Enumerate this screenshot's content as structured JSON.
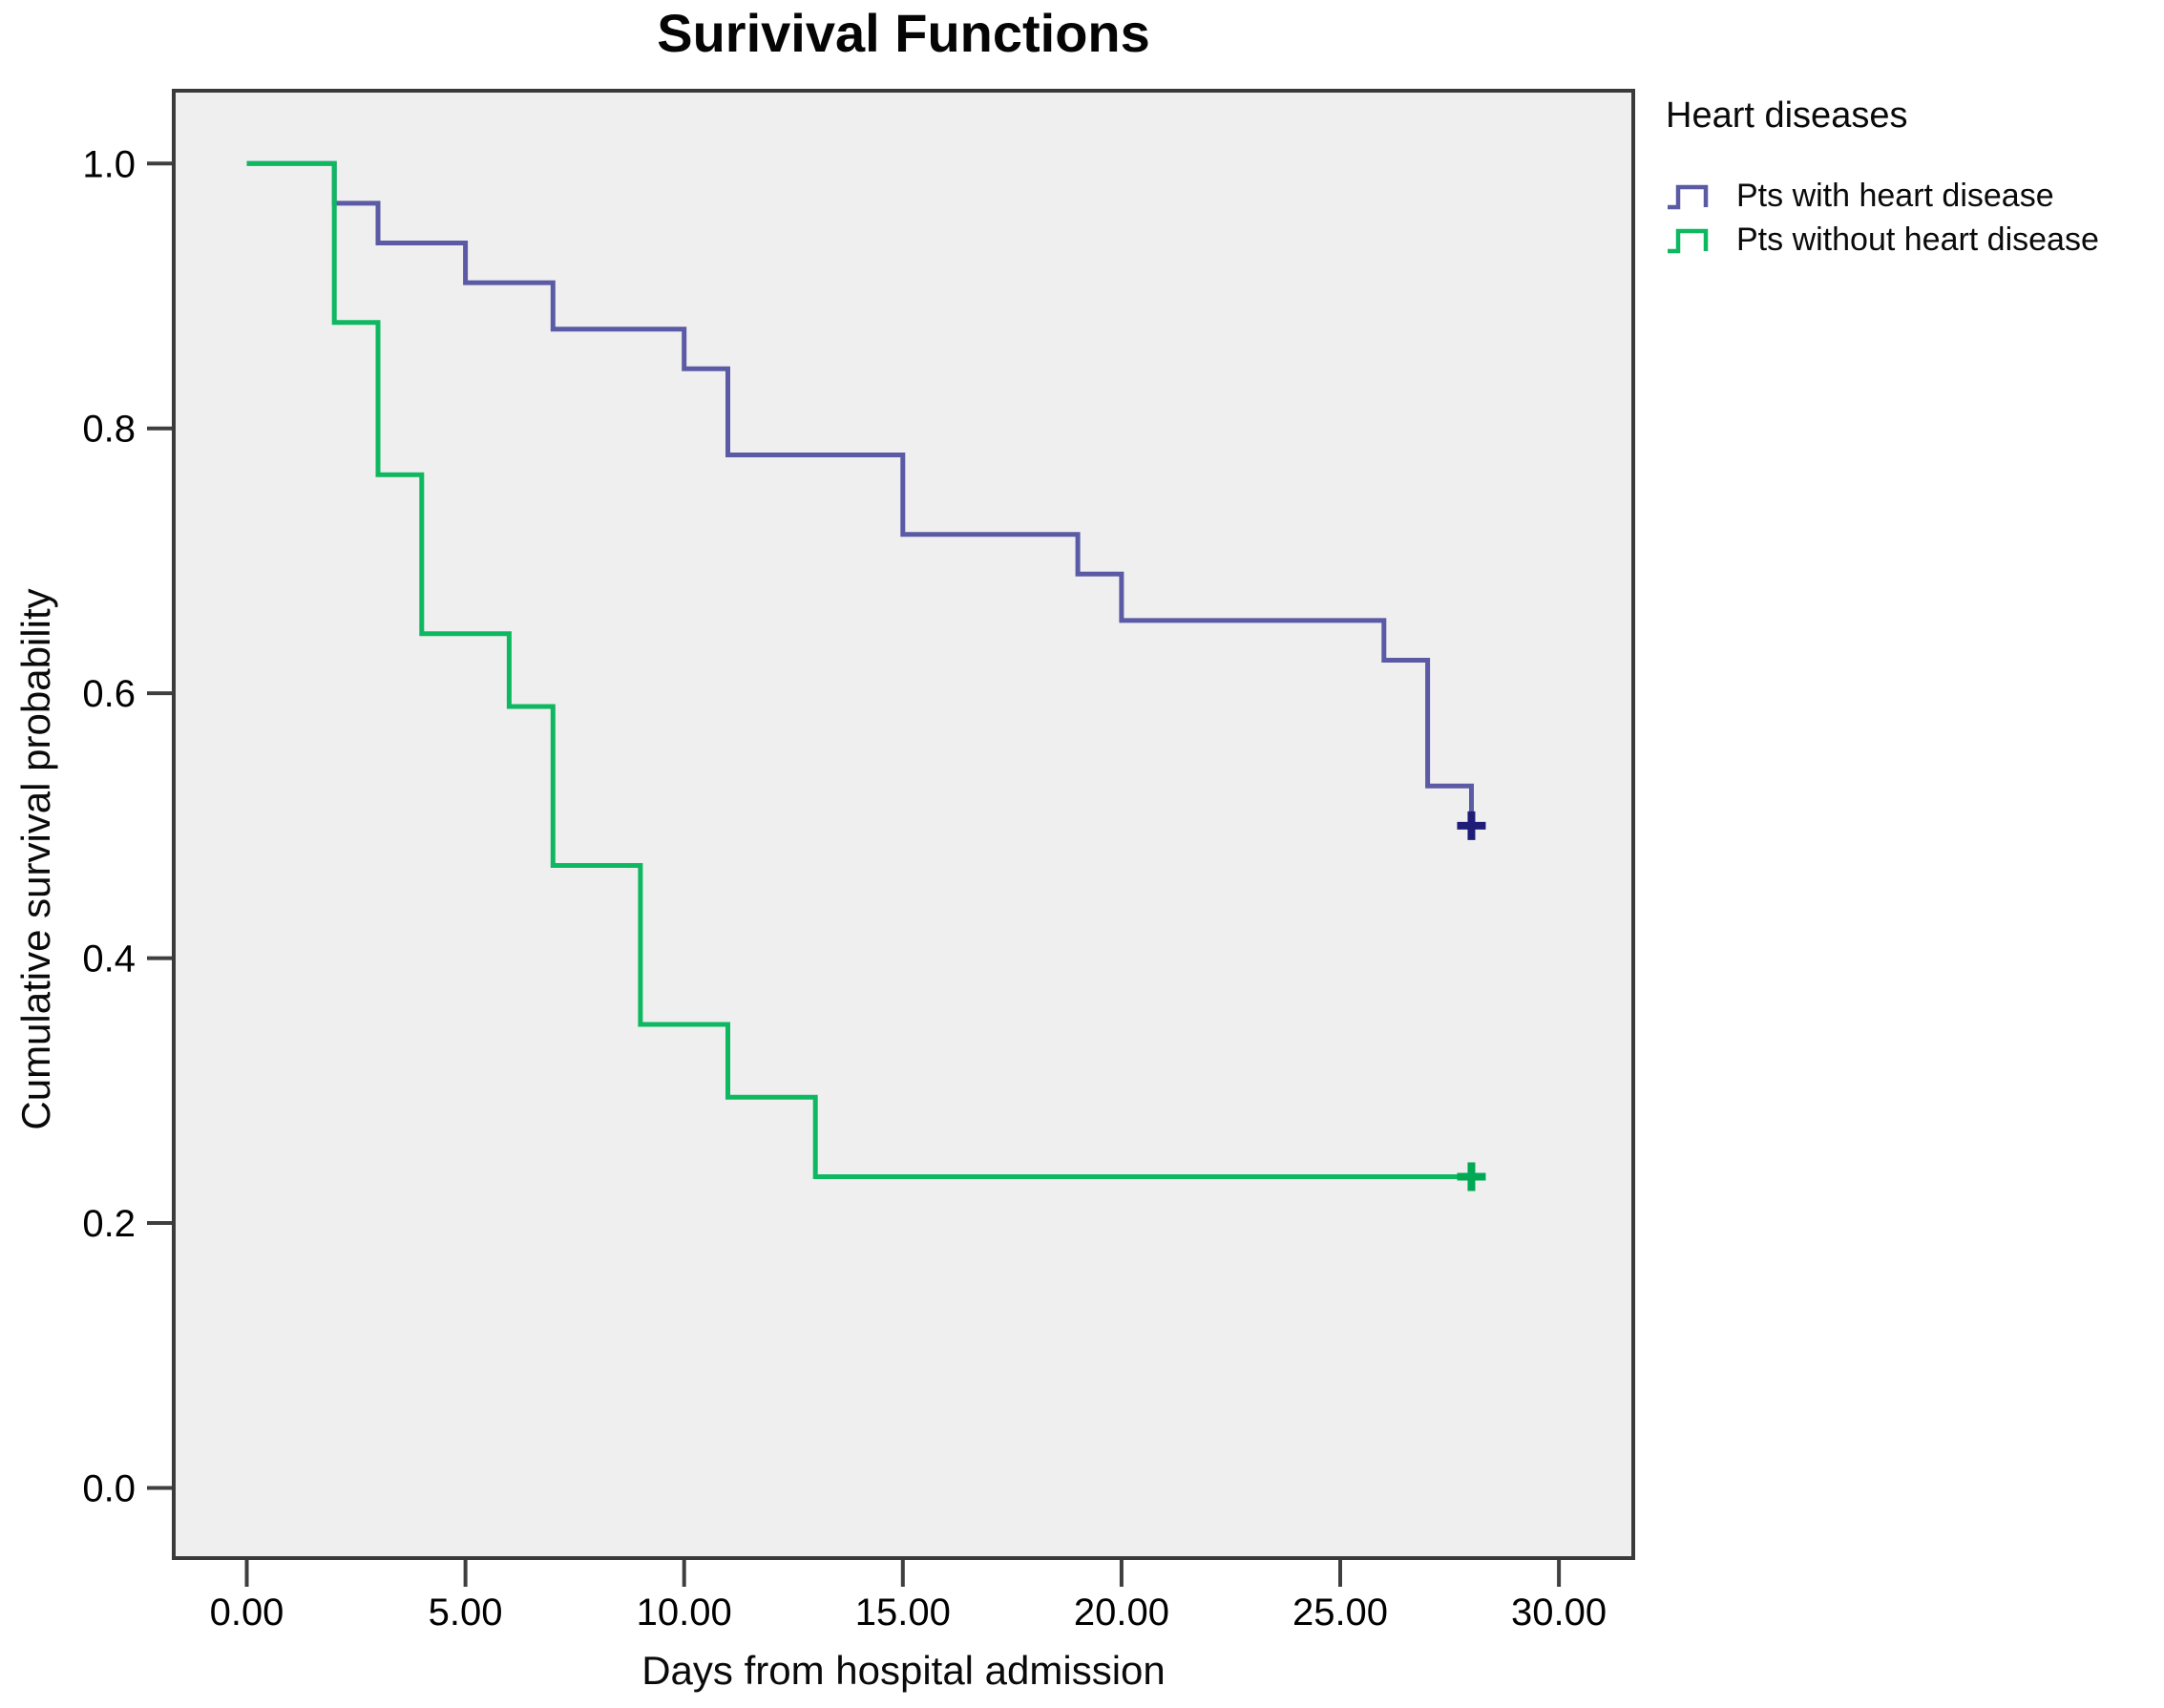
{
  "title": "Surivival Functions",
  "chart_data": {
    "type": "line",
    "subtype": "kaplan-meier-step",
    "title": "Surivival Functions",
    "xlabel": "Days from hospital admission",
    "ylabel": "Cumulative survival probability",
    "xlim": [
      -1.67,
      31.7
    ],
    "ylim": [
      -0.053,
      1.055
    ],
    "xticks": [
      0,
      5,
      10,
      15,
      20,
      25,
      30
    ],
    "xtick_labels": [
      "0.00",
      "5.00",
      "10.00",
      "15.00",
      "20.00",
      "25.00",
      "30.00"
    ],
    "yticks": [
      0.0,
      0.2,
      0.4,
      0.6,
      0.8,
      1.0
    ],
    "ytick_labels": [
      "0.0",
      "0.2",
      "0.4",
      "0.6",
      "0.8",
      "1.0"
    ],
    "grid": false,
    "plot_bg": "#f0eff0",
    "frame_color": "#3a3a3a",
    "tick_color": "#3f3f3f",
    "legend": {
      "title": "Heart diseases",
      "position": "top-right-outside"
    },
    "series": [
      {
        "name": "Pts with heart disease",
        "color": "#5a5aa5",
        "censor_color": "#1e1e78",
        "points": [
          [
            0,
            1.0
          ],
          [
            2,
            1.0
          ],
          [
            2,
            0.97
          ],
          [
            3,
            0.97
          ],
          [
            3,
            0.94
          ],
          [
            5,
            0.94
          ],
          [
            5,
            0.91
          ],
          [
            7,
            0.91
          ],
          [
            7,
            0.875
          ],
          [
            10,
            0.875
          ],
          [
            10,
            0.845
          ],
          [
            11,
            0.845
          ],
          [
            11,
            0.78
          ],
          [
            15,
            0.78
          ],
          [
            15,
            0.72
          ],
          [
            19,
            0.72
          ],
          [
            19,
            0.69
          ],
          [
            20,
            0.69
          ],
          [
            20,
            0.655
          ],
          [
            26,
            0.655
          ],
          [
            26,
            0.625
          ],
          [
            27,
            0.625
          ],
          [
            27,
            0.53
          ],
          [
            28,
            0.53
          ],
          [
            28,
            0.5
          ]
        ],
        "censored": [
          [
            28,
            0.5
          ]
        ]
      },
      {
        "name": "Pts without heart disease",
        "color": "#0eb860",
        "censor_color": "#00a953",
        "points": [
          [
            0,
            1.0
          ],
          [
            2,
            1.0
          ],
          [
            2,
            0.88
          ],
          [
            3,
            0.88
          ],
          [
            3,
            0.765
          ],
          [
            4,
            0.765
          ],
          [
            4,
            0.645
          ],
          [
            6,
            0.645
          ],
          [
            6,
            0.59
          ],
          [
            7,
            0.59
          ],
          [
            7,
            0.47
          ],
          [
            9,
            0.47
          ],
          [
            9,
            0.35
          ],
          [
            11,
            0.35
          ],
          [
            11,
            0.295
          ],
          [
            13,
            0.295
          ],
          [
            13,
            0.235
          ],
          [
            28,
            0.235
          ]
        ],
        "censored": [
          [
            28,
            0.235
          ]
        ]
      }
    ]
  }
}
